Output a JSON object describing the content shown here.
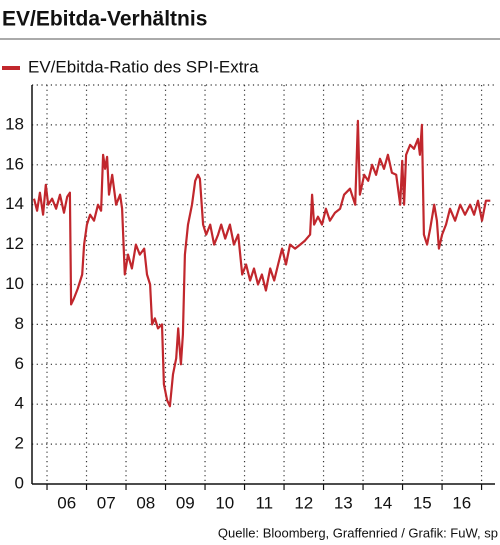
{
  "chart_data": {
    "type": "line",
    "title": "EV/Ebitda-Verhältnis",
    "source": "Quelle: Bloomberg, Graffenried / Grafik: FuW, sp",
    "xlim": [
      2005.62,
      2017.34
    ],
    "xticks": [
      {
        "value": 2006.5,
        "label": "06"
      },
      {
        "value": 2007.5,
        "label": "07"
      },
      {
        "value": 2008.5,
        "label": "08"
      },
      {
        "value": 2009.5,
        "label": "09"
      },
      {
        "value": 2010.5,
        "label": "10"
      },
      {
        "value": 2011.5,
        "label": "11"
      },
      {
        "value": 2012.5,
        "label": "12"
      },
      {
        "value": 2013.5,
        "label": "13"
      },
      {
        "value": 2014.5,
        "label": "14"
      },
      {
        "value": 2015.5,
        "label": "15"
      },
      {
        "value": 2016.5,
        "label": "16"
      }
    ],
    "xgrid": [
      2006,
      2007,
      2008,
      2009,
      2010,
      2011,
      2012,
      2013,
      2014,
      2015,
      2016,
      2017
    ],
    "ylim": [
      0,
      20
    ],
    "yticks": [
      0,
      2,
      4,
      6,
      8,
      10,
      12,
      14,
      16,
      18
    ],
    "grid": true,
    "x": [
      2005.67,
      2005.75,
      2005.82,
      2005.9,
      2005.97,
      2006.03,
      2006.13,
      2006.23,
      2006.33,
      2006.43,
      2006.51,
      2006.58,
      2006.61,
      2006.68,
      2006.78,
      2006.89,
      2006.94,
      2007.01,
      2007.09,
      2007.19,
      2007.29,
      2007.37,
      2007.42,
      2007.47,
      2007.52,
      2007.57,
      2007.65,
      2007.75,
      2007.85,
      2007.9,
      2007.97,
      2008.05,
      2008.15,
      2008.25,
      2008.35,
      2008.46,
      2008.53,
      2008.61,
      2008.66,
      2008.73,
      2008.81,
      2008.91,
      2008.96,
      2009.04,
      2009.11,
      2009.19,
      2009.27,
      2009.32,
      2009.39,
      2009.44,
      2009.49,
      2009.57,
      2009.67,
      2009.75,
      2009.82,
      2009.87,
      2009.95,
      2010.03,
      2010.13,
      2010.23,
      2010.33,
      2010.41,
      2010.51,
      2010.63,
      2010.73,
      2010.84,
      2010.94,
      2011.04,
      2011.14,
      2011.24,
      2011.34,
      2011.44,
      2011.54,
      2011.65,
      2011.75,
      2011.85,
      2011.95,
      2012.05,
      2012.15,
      2012.28,
      2012.41,
      2012.53,
      2012.66,
      2012.71,
      2012.76,
      2012.86,
      2012.96,
      2013.06,
      2013.16,
      2013.29,
      2013.42,
      2013.52,
      2013.67,
      2013.8,
      2013.87,
      2013.92,
      2014.03,
      2014.13,
      2014.23,
      2014.33,
      2014.43,
      2014.53,
      2014.63,
      2014.73,
      2014.84,
      2014.94,
      2014.99,
      2015.04,
      2015.09,
      2015.19,
      2015.29,
      2015.39,
      2015.44,
      2015.49,
      2015.54,
      2015.62,
      2015.7,
      2015.8,
      2015.87,
      2015.92,
      2016.0,
      2016.1,
      2016.2,
      2016.33,
      2016.46,
      2016.58,
      2016.71,
      2016.81,
      2016.91,
      2017.01,
      2017.11,
      2017.22
    ],
    "series": [
      {
        "name": "EV/Ebitda-Ratio des SPI-Extra",
        "color": "#c1272d",
        "values": [
          14.3,
          13.7,
          14.6,
          13.5,
          15.0,
          14.0,
          14.3,
          13.8,
          14.5,
          13.6,
          14.4,
          14.6,
          9.0,
          9.3,
          9.8,
          10.5,
          12.0,
          13.0,
          13.5,
          13.2,
          14.0,
          13.7,
          16.5,
          15.8,
          16.4,
          14.5,
          15.5,
          14.0,
          14.5,
          13.8,
          10.5,
          11.5,
          10.8,
          12.0,
          11.5,
          11.8,
          10.5,
          10.0,
          8.0,
          8.3,
          7.8,
          8.0,
          5.0,
          4.2,
          3.9,
          5.5,
          6.3,
          7.8,
          6.0,
          7.5,
          11.5,
          13.0,
          14.0,
          15.2,
          15.5,
          15.3,
          13.0,
          12.5,
          13.0,
          12.0,
          12.5,
          13.0,
          12.3,
          13.0,
          12.0,
          12.5,
          10.5,
          11.0,
          10.2,
          10.8,
          10.0,
          10.5,
          9.7,
          10.8,
          10.2,
          11.0,
          11.8,
          11.0,
          12.0,
          11.8,
          12.0,
          12.2,
          12.5,
          14.5,
          13.0,
          13.4,
          13.0,
          13.8,
          13.2,
          13.6,
          13.8,
          14.5,
          14.8,
          14.0,
          18.2,
          14.5,
          15.5,
          15.2,
          16.0,
          15.5,
          16.3,
          15.8,
          16.5,
          15.6,
          15.5,
          14.0,
          16.2,
          14.0,
          16.5,
          17.0,
          16.8,
          17.3,
          16.5,
          18.0,
          12.5,
          12.0,
          12.8,
          14.0,
          13.2,
          11.8,
          12.5,
          13.0,
          13.8,
          13.2,
          14.0,
          13.5,
          14.0,
          13.5,
          14.2,
          13.2,
          14.2,
          14.2
        ]
      }
    ]
  }
}
